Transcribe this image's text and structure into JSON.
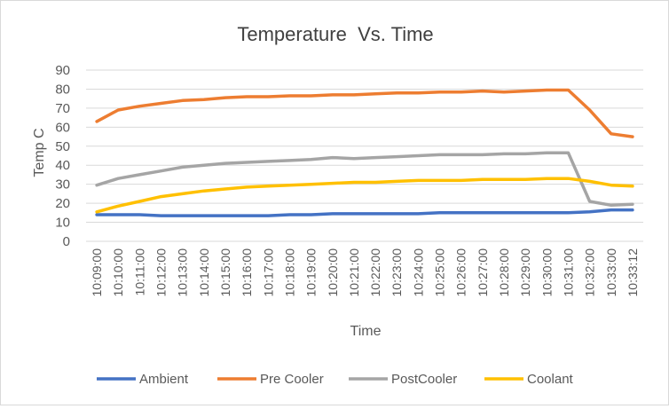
{
  "chart_data": {
    "type": "line",
    "title": "Temperature  Vs. Time",
    "xlabel": "Time",
    "ylabel": "Temp C",
    "ylim": [
      0,
      90
    ],
    "yticks": [
      "0",
      "10",
      "20",
      "30",
      "40",
      "50",
      "60",
      "70",
      "80",
      "90"
    ],
    "grid": true,
    "legend": "bottom",
    "categories": [
      "10:09:00",
      "10:10:00",
      "10:11:00",
      "10:12:00",
      "10:13:00",
      "10:14:00",
      "10:15:00",
      "10:16:00",
      "10:17:00",
      "10:18:00",
      "10:19:00",
      "10:20:00",
      "10:21:00",
      "10:22:00",
      "10:23:00",
      "10:24:00",
      "10:25:00",
      "10:26:00",
      "10:27:00",
      "10:28:00",
      "10:29:00",
      "10:30:00",
      "10:31:00",
      "10:32:00",
      "10:33:00",
      "10:33:12"
    ],
    "series": [
      {
        "name": "Ambient",
        "color": "#4472c4",
        "values": [
          14,
          14,
          14,
          13.5,
          13.5,
          13.5,
          13.5,
          13.5,
          13.5,
          14,
          14,
          14.5,
          14.5,
          14.5,
          14.5,
          14.5,
          15,
          15,
          15,
          15,
          15,
          15,
          15,
          15.5,
          16.5,
          16.5
        ]
      },
      {
        "name": "Pre Cooler",
        "color": "#ed7d31",
        "values": [
          63,
          69,
          71,
          72.5,
          74,
          74.5,
          75.5,
          76,
          76,
          76.5,
          76.5,
          77,
          77,
          77.5,
          78,
          78,
          78.5,
          78.5,
          79,
          78.5,
          79,
          79.5,
          79.5,
          69,
          56.5,
          55
        ]
      },
      {
        "name": "PostCooler",
        "color": "#a5a5a5",
        "values": [
          29.5,
          33,
          35,
          37,
          39,
          40,
          41,
          41.5,
          42,
          42.5,
          43,
          44,
          43.5,
          44,
          44.5,
          45,
          45.5,
          45.5,
          45.5,
          46,
          46,
          46.5,
          46.5,
          21,
          19,
          19.5
        ]
      },
      {
        "name": "Coolant",
        "color": "#ffc000",
        "values": [
          15.5,
          18.5,
          21,
          23.5,
          25,
          26.5,
          27.5,
          28.5,
          29,
          29.5,
          30,
          30.5,
          31,
          31,
          31.5,
          32,
          32,
          32,
          32.5,
          32.5,
          32.5,
          33,
          33,
          31.5,
          29.5,
          29
        ]
      }
    ]
  }
}
